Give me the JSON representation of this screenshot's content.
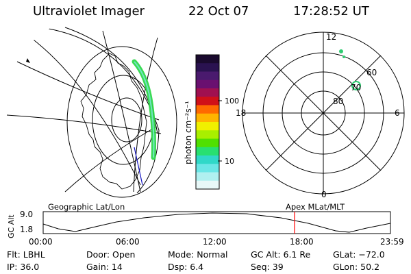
{
  "header": {
    "title": "Ultraviolet Imager",
    "date": "22 Oct 07",
    "time": "17:28:52 UT"
  },
  "colorbar": {
    "unit_label": "photon cm⁻²s⁻¹",
    "ticks": [
      "100",
      "10"
    ],
    "colors": [
      "#1a0a2e",
      "#2a1250",
      "#4a1a6e",
      "#6a1070",
      "#a01050",
      "#d01018",
      "#ff6a00",
      "#ffb400",
      "#f0f000",
      "#a8ef00",
      "#50e000",
      "#28e070",
      "#30d8c8",
      "#6be6e6",
      "#b0f0f0",
      "#e8f8f8"
    ]
  },
  "polar_plot": {
    "mlt_labels": [
      "12",
      "18",
      "6",
      "0"
    ],
    "lat_labels": [
      "60",
      "70",
      "80"
    ]
  },
  "timeline": {
    "y_axis_label": "GC Alt",
    "y_ticks": [
      "9.0",
      "1.8"
    ],
    "left_title": "Geographic Lat/Lon",
    "right_title": "Apex MLat/MLT",
    "x_ticks": [
      "00:00",
      "06:00",
      "12:00",
      "18:00",
      "23:59"
    ],
    "marker_color": "#ff0000"
  },
  "meta": {
    "flt": "Flt: LBHL",
    "ip": "IP: 36.0",
    "door": "Door: Open",
    "gain": "Gain: 14",
    "mode": "Mode: Normal",
    "dsp": "Dsp:    6.4",
    "gcalt": "GC Alt: 6.1 Re",
    "seq": "Seq: 39",
    "glat": "GLat: −72.0",
    "glon": "GLon:  50.2"
  }
}
